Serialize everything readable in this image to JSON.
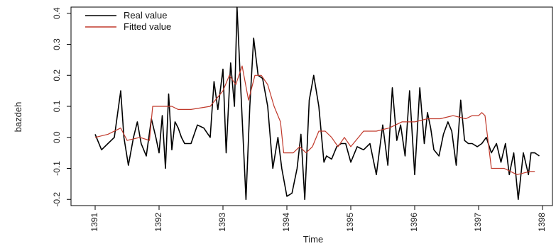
{
  "chart_data": {
    "type": "line",
    "title": "",
    "xlabel": "Time",
    "ylabel": "bazdeh",
    "xlim": [
      1391,
      1398
    ],
    "ylim": [
      -0.22,
      0.42
    ],
    "x_ticks": [
      1391,
      1392,
      1393,
      1394,
      1395,
      1396,
      1397,
      1398
    ],
    "x_tick_labels": [
      "1391",
      "1392",
      "1393",
      "1394",
      "1395",
      "1396",
      "1397",
      "1398"
    ],
    "y_ticks": [
      -0.2,
      -0.1,
      0.0,
      0.1,
      0.2,
      0.3,
      0.4
    ],
    "y_tick_labels": [
      "-0.2",
      "-0.1",
      "0.0",
      "0.1",
      "0.2",
      "0.3",
      "0.4"
    ],
    "grid": false,
    "legend_position": "top-left",
    "series": [
      {
        "name": "Real value",
        "color": "#000000",
        "x": [
          1391.0,
          1391.1,
          1391.2,
          1391.3,
          1391.4,
          1391.45,
          1391.52,
          1391.6,
          1391.66,
          1391.72,
          1391.8,
          1391.88,
          1391.95,
          1392.0,
          1392.05,
          1392.1,
          1392.15,
          1392.2,
          1392.25,
          1392.3,
          1392.35,
          1392.4,
          1392.5,
          1392.6,
          1392.7,
          1392.8,
          1392.86,
          1392.92,
          1393.0,
          1393.05,
          1393.12,
          1393.18,
          1393.22,
          1393.28,
          1393.36,
          1393.42,
          1393.48,
          1393.55,
          1393.62,
          1393.7,
          1393.78,
          1393.86,
          1393.92,
          1394.0,
          1394.08,
          1394.16,
          1394.22,
          1394.28,
          1394.35,
          1394.42,
          1394.5,
          1394.58,
          1394.62,
          1394.7,
          1394.78,
          1394.85,
          1394.92,
          1395.0,
          1395.1,
          1395.2,
          1395.3,
          1395.4,
          1395.5,
          1395.58,
          1395.65,
          1395.72,
          1395.78,
          1395.85,
          1395.92,
          1396.0,
          1396.08,
          1396.15,
          1396.2,
          1396.25,
          1396.3,
          1396.38,
          1396.45,
          1396.52,
          1396.58,
          1396.65,
          1396.72,
          1396.78,
          1396.84,
          1396.9,
          1396.98,
          1397.05,
          1397.12,
          1397.2,
          1397.28,
          1397.35,
          1397.42,
          1397.48,
          1397.55,
          1397.62,
          1397.7,
          1397.78,
          1397.82,
          1397.88,
          1397.95
        ],
        "values": [
          0.01,
          -0.04,
          -0.02,
          0.0,
          0.15,
          0.0,
          -0.09,
          0.0,
          0.05,
          -0.02,
          -0.06,
          0.06,
          0.0,
          -0.05,
          0.07,
          -0.1,
          0.14,
          -0.04,
          0.05,
          0.03,
          0.0,
          -0.02,
          -0.02,
          0.04,
          0.03,
          0.0,
          0.18,
          0.09,
          0.22,
          -0.05,
          0.24,
          0.1,
          0.42,
          0.15,
          -0.2,
          0.1,
          0.32,
          0.2,
          0.19,
          0.1,
          -0.1,
          0.0,
          -0.1,
          -0.19,
          -0.18,
          -0.1,
          0.01,
          -0.2,
          0.12,
          0.2,
          0.1,
          -0.08,
          -0.06,
          -0.07,
          -0.03,
          -0.02,
          -0.02,
          -0.08,
          -0.03,
          -0.04,
          -0.02,
          -0.12,
          0.04,
          -0.09,
          0.16,
          -0.01,
          0.04,
          -0.06,
          0.15,
          -0.12,
          0.16,
          -0.02,
          0.08,
          0.03,
          -0.04,
          -0.06,
          0.01,
          0.05,
          0.02,
          -0.09,
          0.12,
          -0.01,
          -0.02,
          -0.02,
          -0.03,
          -0.02,
          0.0,
          -0.05,
          -0.02,
          -0.08,
          -0.02,
          -0.12,
          -0.05,
          -0.2,
          -0.05,
          -0.12,
          -0.05,
          -0.05,
          -0.06
        ]
      },
      {
        "name": "Fitted value",
        "color": "#c0392b",
        "x": [
          1391.0,
          1391.2,
          1391.4,
          1391.5,
          1391.7,
          1391.85,
          1391.9,
          1392.0,
          1392.2,
          1392.3,
          1392.5,
          1392.8,
          1393.0,
          1393.1,
          1393.2,
          1393.3,
          1393.4,
          1393.5,
          1393.6,
          1393.7,
          1393.8,
          1393.9,
          1393.95,
          1394.0,
          1394.1,
          1394.2,
          1394.3,
          1394.4,
          1394.5,
          1394.6,
          1394.7,
          1394.8,
          1394.9,
          1395.0,
          1395.2,
          1395.4,
          1395.6,
          1395.8,
          1396.0,
          1396.2,
          1396.4,
          1396.6,
          1396.8,
          1396.9,
          1397.0,
          1397.05,
          1397.1,
          1397.2,
          1397.4,
          1397.6,
          1397.8,
          1397.88
        ],
        "values": [
          0.0,
          0.01,
          0.03,
          -0.01,
          0.0,
          -0.01,
          0.1,
          0.1,
          0.1,
          0.09,
          0.09,
          0.1,
          0.15,
          0.2,
          0.17,
          0.23,
          0.12,
          0.2,
          0.2,
          0.17,
          0.1,
          0.05,
          -0.05,
          -0.05,
          -0.05,
          -0.03,
          -0.05,
          -0.03,
          0.02,
          0.02,
          0.0,
          -0.03,
          0.0,
          -0.03,
          0.02,
          0.02,
          0.03,
          0.05,
          0.05,
          0.06,
          0.06,
          0.07,
          0.06,
          0.07,
          0.07,
          0.08,
          0.07,
          -0.1,
          -0.1,
          -0.12,
          -0.11,
          -0.11
        ]
      }
    ]
  }
}
